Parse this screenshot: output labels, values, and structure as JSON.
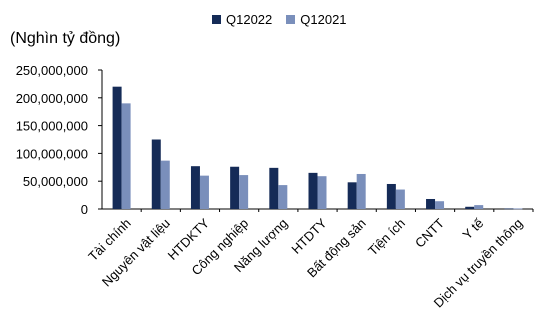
{
  "unit_label": "(Nghìn tỷ đồng)",
  "colors": {
    "series_1": "#152b57",
    "series_2": "#7a8fbb",
    "axis": "#000000"
  },
  "chart_data": {
    "type": "bar",
    "ylabel": "(Nghìn tỷ đồng)",
    "ylim": [
      0,
      250000000
    ],
    "yticks": [
      0,
      50000000,
      100000000,
      150000000,
      200000000,
      250000000
    ],
    "ytick_labels": [
      "0",
      "50,000,000",
      "100,000,000",
      "150,000,000",
      "200,000,000",
      "250,000,000"
    ],
    "grid": false,
    "legend_position": "top",
    "categories": [
      "Tài chính",
      "Nguyên vật liệu",
      "HTDKTY",
      "Công nghiệp",
      "Năng lượng",
      "HTDTY",
      "Bất động sản",
      "Tiện ích",
      "CNTT",
      "Y tế",
      "Dịch vụ truyền thông"
    ],
    "series": [
      {
        "name": "Q12022",
        "values": [
          220000000,
          125000000,
          77000000,
          76000000,
          74000000,
          65000000,
          48000000,
          45000000,
          18000000,
          4000000,
          1000000
        ]
      },
      {
        "name": "Q12021",
        "values": [
          190000000,
          87000000,
          60000000,
          61000000,
          43000000,
          59000000,
          63000000,
          35000000,
          14000000,
          7000000,
          1000000
        ]
      }
    ]
  }
}
